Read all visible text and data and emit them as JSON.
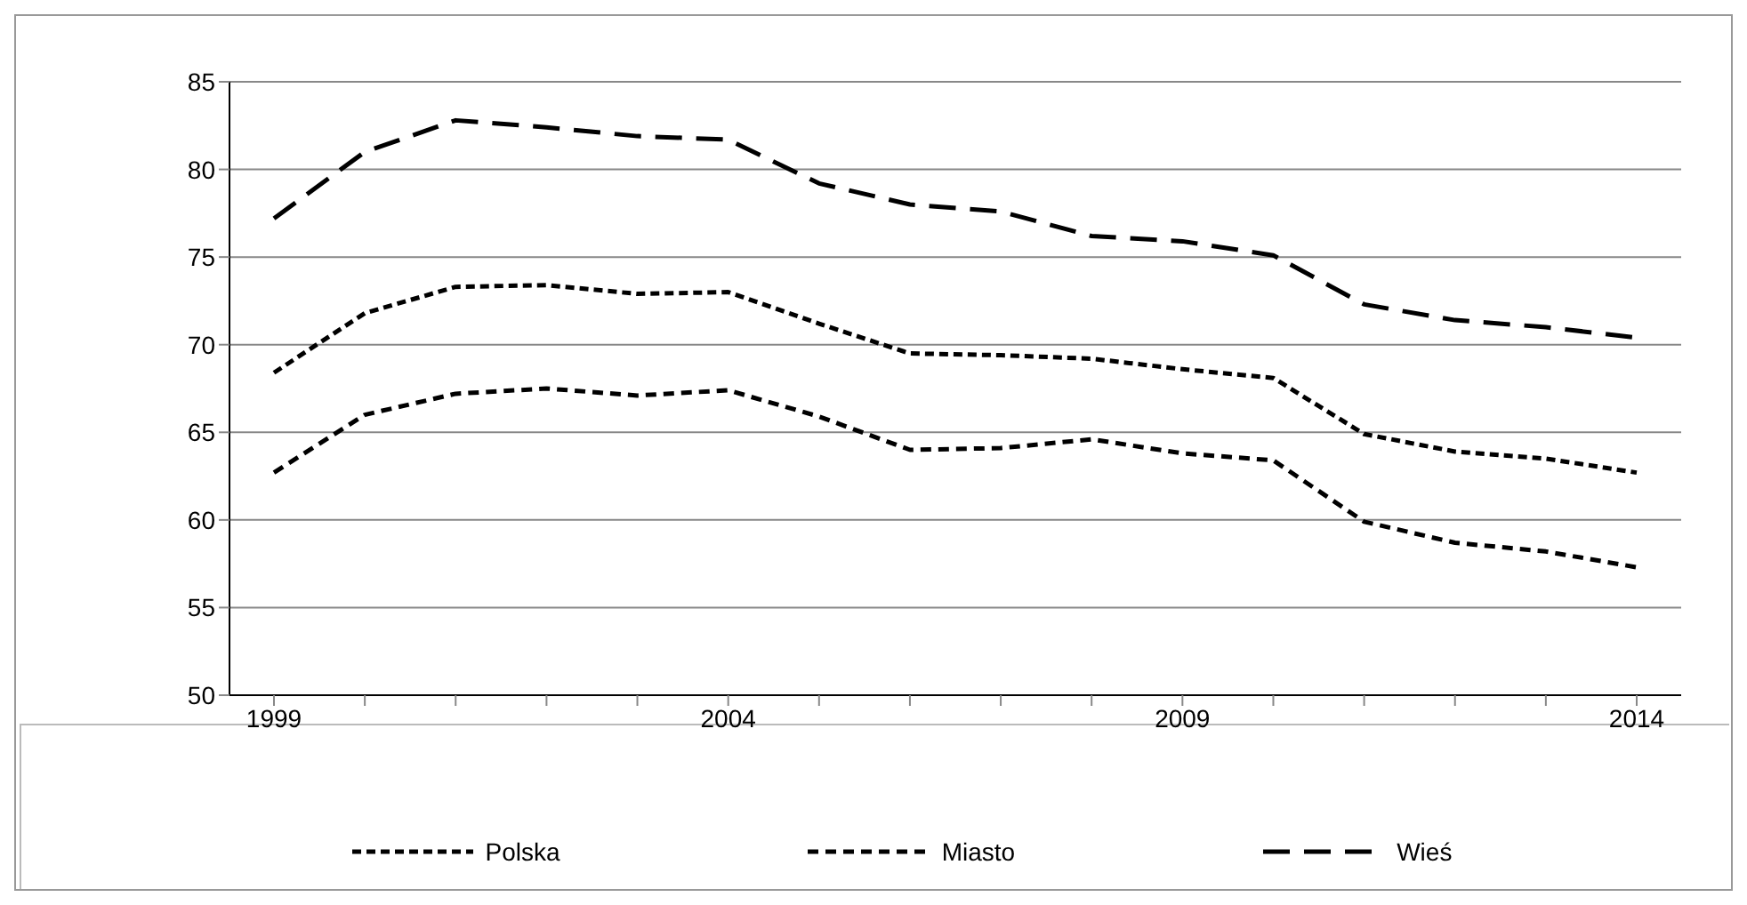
{
  "chart_data": {
    "type": "line",
    "categories": [
      "1999",
      null,
      null,
      null,
      null,
      "2004",
      null,
      null,
      null,
      null,
      "2009",
      null,
      null,
      null,
      null,
      "2014"
    ],
    "series": [
      {
        "name": "Polska",
        "color": "#000000",
        "line_style": "dotted",
        "values": [
          68.4,
          71.8,
          73.3,
          73.4,
          72.9,
          73.0,
          71.2,
          69.5,
          69.4,
          69.2,
          68.6,
          68.1,
          64.9,
          63.9,
          63.5,
          62.7
        ]
      },
      {
        "name": "Miasto",
        "color": "#000000",
        "line_style": "dashed",
        "values": [
          62.7,
          66.0,
          67.2,
          67.5,
          67.1,
          67.4,
          65.9,
          64.0,
          64.1,
          64.6,
          63.8,
          63.4,
          59.9,
          58.7,
          58.2,
          57.3
        ]
      },
      {
        "name": "Wieś",
        "color": "#000000",
        "line_style": "dashed",
        "values": [
          77.2,
          81.0,
          82.8,
          82.4,
          81.9,
          81.7,
          79.2,
          78.0,
          77.6,
          76.2,
          75.9,
          75.1,
          72.3,
          71.4,
          71.0,
          70.4
        ]
      }
    ],
    "ylim": [
      50,
      85
    ],
    "yticks": [
      50,
      55,
      60,
      65,
      70,
      75,
      80,
      85
    ],
    "grid": "y",
    "legend": "bottom",
    "marker": "none"
  }
}
